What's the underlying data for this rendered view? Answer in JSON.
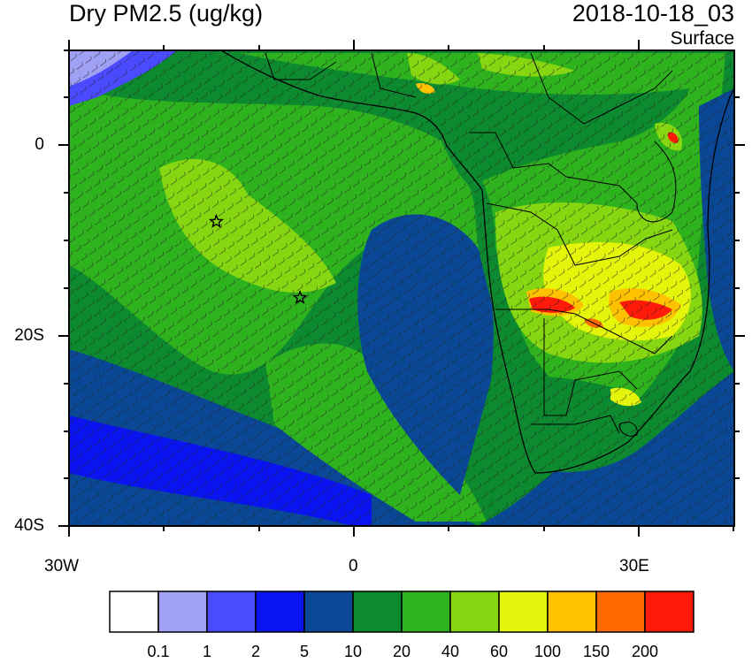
{
  "header": {
    "title": "Dry PM2.5 (ug/kg)",
    "datetime": "2018-10-18_03",
    "level": "Surface"
  },
  "map": {
    "lat_labels": [
      "0",
      "20S",
      "40S"
    ],
    "lon_labels": [
      "30W",
      "0",
      "30E"
    ],
    "extent": {
      "lon_min": -30,
      "lon_max": 40,
      "lat_min": -40,
      "lat_max": 10
    },
    "markers": [
      {
        "name": "star-marker",
        "lon": -14.5,
        "lat": -8
      },
      {
        "name": "star-marker",
        "lon": -5.7,
        "lat": -16
      }
    ]
  },
  "colorbar": {
    "colors": [
      "#ffffff",
      "#a0a0f5",
      "#4a4aff",
      "#0a14f0",
      "#0a4896",
      "#0d8a30",
      "#2eb31e",
      "#86d611",
      "#e4f50c",
      "#ffc200",
      "#ff6a00",
      "#ff1a0a"
    ],
    "labels": [
      "0.1",
      "1",
      "2",
      "5",
      "10",
      "20",
      "40",
      "60",
      "100",
      "150",
      "200"
    ]
  }
}
